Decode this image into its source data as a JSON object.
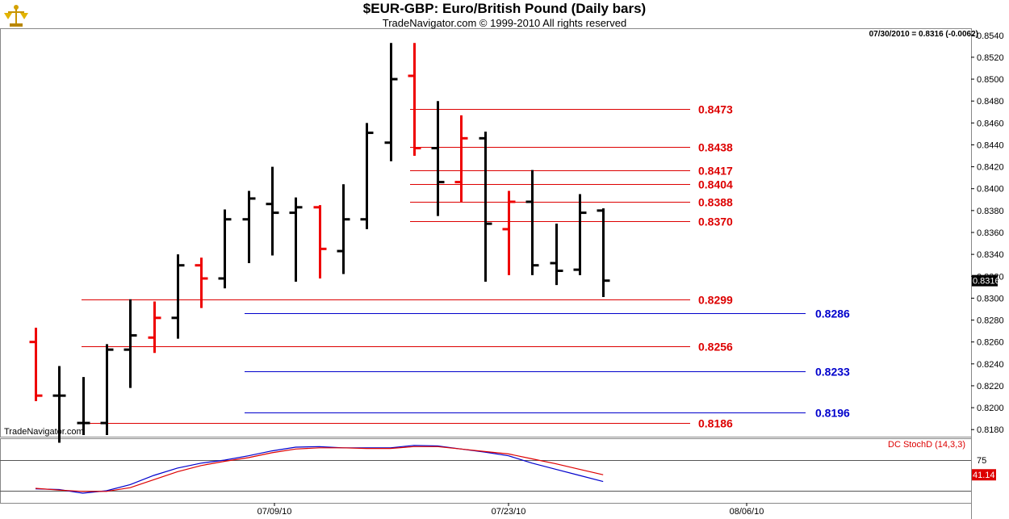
{
  "header": {
    "title": "$EUR-GBP:  Euro/British Pound  (Daily bars)",
    "subtitle": "TradeNavigator.com © 1999-2010 All rights reserved",
    "last_quote": "07/30/2010 = 0.8316 (-0.0062)",
    "watermark": "TradeNavigator.com"
  },
  "chart_data": [
    {
      "type": "bar",
      "subtype": "ohlc",
      "title": "$EUR-GBP:  Euro/British Pound  (Daily bars)",
      "y_range": [
        0.8175,
        0.8545
      ],
      "y_ticks": [
        "0.8540",
        "0.8520",
        "0.8500",
        "0.8480",
        "0.8460",
        "0.8440",
        "0.8420",
        "0.8400",
        "0.8380",
        "0.8360",
        "0.8340",
        "0.8320",
        "0.8300",
        "0.8280",
        "0.8260",
        "0.8240",
        "0.8220",
        "0.8200",
        "0.8180"
      ],
      "x_ticks": [
        "07/09/10",
        "07/23/10",
        "08/06/10"
      ],
      "last_price_label": "0.8316",
      "colors": {
        "up": "#000000",
        "down": "#ee0000",
        "red_level": "#dd0000",
        "blue_level": "#0000cc"
      },
      "bars": [
        {
          "o": 0.826,
          "h": 0.8273,
          "l": 0.8206,
          "c": 0.8211,
          "dir": "down"
        },
        {
          "o": 0.8211,
          "h": 0.8238,
          "l": 0.8168,
          "c": 0.8211,
          "dir": "up"
        },
        {
          "o": 0.8186,
          "h": 0.8228,
          "l": 0.8175,
          "c": 0.8186,
          "dir": "up"
        },
        {
          "o": 0.8186,
          "h": 0.8258,
          "l": 0.8175,
          "c": 0.8253,
          "dir": "up"
        },
        {
          "o": 0.8253,
          "h": 0.8299,
          "l": 0.8218,
          "c": 0.8266,
          "dir": "up"
        },
        {
          "o": 0.8264,
          "h": 0.8297,
          "l": 0.825,
          "c": 0.8282,
          "dir": "down"
        },
        {
          "o": 0.8282,
          "h": 0.834,
          "l": 0.8263,
          "c": 0.833,
          "dir": "up"
        },
        {
          "o": 0.833,
          "h": 0.8337,
          "l": 0.8291,
          "c": 0.8318,
          "dir": "down"
        },
        {
          "o": 0.8318,
          "h": 0.8381,
          "l": 0.8309,
          "c": 0.8372,
          "dir": "up"
        },
        {
          "o": 0.8372,
          "h": 0.8398,
          "l": 0.8332,
          "c": 0.8391,
          "dir": "up"
        },
        {
          "o": 0.8386,
          "h": 0.842,
          "l": 0.8339,
          "c": 0.8378,
          "dir": "up"
        },
        {
          "o": 0.8378,
          "h": 0.8392,
          "l": 0.8315,
          "c": 0.8383,
          "dir": "up"
        },
        {
          "o": 0.8383,
          "h": 0.8385,
          "l": 0.8318,
          "c": 0.8345,
          "dir": "down"
        },
        {
          "o": 0.8343,
          "h": 0.8404,
          "l": 0.8322,
          "c": 0.8372,
          "dir": "up"
        },
        {
          "o": 0.8372,
          "h": 0.846,
          "l": 0.8363,
          "c": 0.8451,
          "dir": "up"
        },
        {
          "o": 0.8442,
          "h": 0.8533,
          "l": 0.8425,
          "c": 0.85,
          "dir": "up"
        },
        {
          "o": 0.8503,
          "h": 0.8533,
          "l": 0.843,
          "c": 0.8437,
          "dir": "down"
        },
        {
          "o": 0.8437,
          "h": 0.848,
          "l": 0.8375,
          "c": 0.8406,
          "dir": "up"
        },
        {
          "o": 0.8406,
          "h": 0.8467,
          "l": 0.8388,
          "c": 0.8446,
          "dir": "down"
        },
        {
          "o": 0.8446,
          "h": 0.8452,
          "l": 0.8315,
          "c": 0.8368,
          "dir": "up"
        },
        {
          "o": 0.8363,
          "h": 0.8398,
          "l": 0.8321,
          "c": 0.8388,
          "dir": "down"
        },
        {
          "o": 0.8388,
          "h": 0.8417,
          "l": 0.8321,
          "c": 0.833,
          "dir": "up"
        },
        {
          "o": 0.8332,
          "h": 0.8368,
          "l": 0.8312,
          "c": 0.8325,
          "dir": "up"
        },
        {
          "o": 0.8326,
          "h": 0.8395,
          "l": 0.8321,
          "c": 0.8378,
          "dir": "up"
        },
        {
          "o": 0.838,
          "h": 0.8382,
          "l": 0.8301,
          "c": 0.8316,
          "dir": "up"
        }
      ],
      "levels": [
        {
          "value": 0.8473,
          "label": "0.8473",
          "color": "red"
        },
        {
          "value": 0.8438,
          "label": "0.8438",
          "color": "red"
        },
        {
          "value": 0.8417,
          "label": "0.8417",
          "color": "red"
        },
        {
          "value": 0.8404,
          "label": "0.8404",
          "color": "red"
        },
        {
          "value": 0.8388,
          "label": "0.8388",
          "color": "red"
        },
        {
          "value": 0.837,
          "label": "0.8370",
          "color": "red"
        },
        {
          "value": 0.8299,
          "label": "0.8299",
          "color": "red"
        },
        {
          "value": 0.8286,
          "label": "0.8286",
          "color": "blue"
        },
        {
          "value": 0.8256,
          "label": "0.8256",
          "color": "red"
        },
        {
          "value": 0.8233,
          "label": "0.8233",
          "color": "blue"
        },
        {
          "value": 0.8196,
          "label": "0.8196",
          "color": "blue"
        },
        {
          "value": 0.8186,
          "label": "0.8186",
          "color": "red"
        }
      ]
    },
    {
      "type": "line",
      "title": "DC StochD (14,3,3)",
      "y_range": [
        0,
        100
      ],
      "y_ticks": [
        "75"
      ],
      "reference_lines": [
        75,
        25
      ],
      "last_value_label": "41.14",
      "series": [
        {
          "color": "#0000cc",
          "values": [
            28.0,
            27.0,
            21.0,
            25.0,
            35.0,
            50.0,
            62.0,
            70.0,
            75.0,
            82.0,
            90.0,
            96.0,
            97.0,
            95.0,
            95.0,
            95.0,
            99.0,
            98.0,
            93.0,
            88.0,
            82.0,
            70.0,
            60.0,
            50.0,
            40.0
          ]
        },
        {
          "color": "#dd0000",
          "values": [
            29.0,
            26.0,
            24.0,
            24.0,
            30.0,
            43.0,
            56.0,
            66.0,
            73.0,
            79.0,
            87.0,
            93.0,
            95.0,
            95.0,
            94.0,
            94.0,
            97.0,
            97.0,
            93.0,
            89.0,
            85.0,
            77.0,
            69.0,
            60.0,
            51.0
          ]
        }
      ]
    }
  ]
}
